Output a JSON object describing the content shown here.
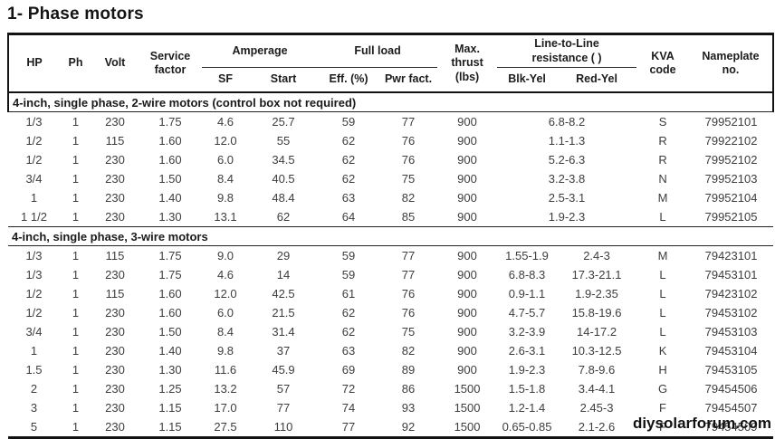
{
  "title": "1- Phase motors",
  "watermark": "diysolarforum.com",
  "table": {
    "columns": {
      "hp": "HP",
      "ph": "Ph",
      "volt": "Volt",
      "service_factor": "Service\nfactor",
      "amperage_group": "Amperage",
      "sf": "SF",
      "start": "Start",
      "full_load_group": "Full load",
      "eff": "Eff. (%)",
      "pwr_fact": "Pwr fact.",
      "max_thrust": "Max.\nthrust\n(lbs)",
      "resistance_group": "Line-to-Line\nresistance (  )",
      "blk_yel": "Blk-Yel",
      "red_yel": "Red-Yel",
      "kva_code": "KVA\ncode",
      "nameplate": "Nameplate\nno."
    },
    "sections": [
      {
        "title": "4-inch, single phase, 2-wire motors (control box not required)",
        "resistance_spans_both": true,
        "rows": [
          [
            "1/3",
            "1",
            "230",
            "1.75",
            "4.6",
            "25.7",
            "59",
            "77",
            "900",
            "6.8-8.2",
            "S",
            "79952101"
          ],
          [
            "1/2",
            "1",
            "115",
            "1.60",
            "12.0",
            "55",
            "62",
            "76",
            "900",
            "1.1-1.3",
            "R",
            "79922102"
          ],
          [
            "1/2",
            "1",
            "230",
            "1.60",
            "6.0",
            "34.5",
            "62",
            "76",
            "900",
            "5.2-6.3",
            "R",
            "79952102"
          ],
          [
            "3/4",
            "1",
            "230",
            "1.50",
            "8.4",
            "40.5",
            "62",
            "75",
            "900",
            "3.2-3.8",
            "N",
            "79952103"
          ],
          [
            "1",
            "1",
            "230",
            "1.40",
            "9.8",
            "48.4",
            "63",
            "82",
            "900",
            "2.5-3.1",
            "M",
            "79952104"
          ],
          [
            "1 1/2",
            "1",
            "230",
            "1.30",
            "13.1",
            "62",
            "64",
            "85",
            "900",
            "1.9-2.3",
            "L",
            "79952105"
          ]
        ]
      },
      {
        "title": "4-inch, single phase, 3-wire motors",
        "resistance_spans_both": false,
        "rows": [
          [
            "1/3",
            "1",
            "115",
            "1.75",
            "9.0",
            "29",
            "59",
            "77",
            "900",
            "1.55-1.9",
            "2.4-3",
            "M",
            "79423101"
          ],
          [
            "1/3",
            "1",
            "230",
            "1.75",
            "4.6",
            "14",
            "59",
            "77",
            "900",
            "6.8-8.3",
            "17.3-21.1",
            "L",
            "79453101"
          ],
          [
            "1/2",
            "1",
            "115",
            "1.60",
            "12.0",
            "42.5",
            "61",
            "76",
            "900",
            "0.9-1.1",
            "1.9-2.35",
            "L",
            "79423102"
          ],
          [
            "1/2",
            "1",
            "230",
            "1.60",
            "6.0",
            "21.5",
            "62",
            "76",
            "900",
            "4.7-5.7",
            "15.8-19.6",
            "L",
            "79453102"
          ],
          [
            "3/4",
            "1",
            "230",
            "1.50",
            "8.4",
            "31.4",
            "62",
            "75",
            "900",
            "3.2-3.9",
            "14-17.2",
            "L",
            "79453103"
          ],
          [
            "1",
            "1",
            "230",
            "1.40",
            "9.8",
            "37",
            "63",
            "82",
            "900",
            "2.6-3.1",
            "10.3-12.5",
            "K",
            "79453104"
          ],
          [
            "1.5",
            "1",
            "230",
            "1.30",
            "11.6",
            "45.9",
            "69",
            "89",
            "900",
            "1.9-2.3",
            "7.8-9.6",
            "H",
            "79453105"
          ],
          [
            "2",
            "1",
            "230",
            "1.25",
            "13.2",
            "57",
            "72",
            "86",
            "1500",
            "1.5-1.8",
            "3.4-4.1",
            "G",
            "79454506"
          ],
          [
            "3",
            "1",
            "230",
            "1.15",
            "17.0",
            "77",
            "74",
            "93",
            "1500",
            "1.2-1.4",
            "2.45-3",
            "F",
            "79454507"
          ],
          [
            "5",
            "1",
            "230",
            "1.15",
            "27.5",
            "110",
            "77",
            "92",
            "1500",
            "0.65-0.85",
            "2.1-2.6",
            "F",
            "79454509"
          ]
        ]
      }
    ]
  }
}
